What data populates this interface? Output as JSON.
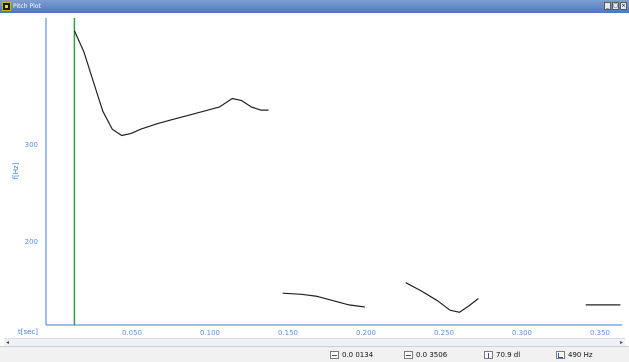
{
  "window": {
    "title": "Pitch Plot",
    "icon": "app-logo-icon",
    "controls": [
      "_",
      "□",
      "×"
    ]
  },
  "colors": {
    "titlebar": "#5b82c2",
    "axis": "#3a7fd6",
    "cursor": "#2fa14a",
    "curve": "#222222",
    "grid_text": "#5a8fe0"
  },
  "axes": {
    "y_label": "f[Hz]",
    "y_ticks": [
      "300",
      "200"
    ],
    "x_label": "t[sec]",
    "x_ticks": [
      "0.050",
      "0.100",
      "0.150",
      "0.200",
      "0.250",
      "0.300",
      "0.350"
    ]
  },
  "chart_data": {
    "type": "line",
    "xlabel": "t[sec]",
    "ylabel": "f[Hz]",
    "xlim": [
      0.0,
      0.365
    ],
    "ylim": [
      120,
      410
    ],
    "cursor_x": 0.018,
    "series": [
      {
        "x": [
          0.018,
          0.024,
          0.03,
          0.036,
          0.042,
          0.048,
          0.054,
          0.06,
          0.07,
          0.08,
          0.09,
          0.1,
          0.11,
          0.118,
          0.124,
          0.13,
          0.136,
          0.141
        ],
        "y": [
          398,
          378,
          350,
          322,
          305,
          299,
          301,
          305,
          310,
          314,
          318,
          322,
          326,
          334,
          332,
          326,
          323,
          323
        ]
      },
      {
        "x": [
          0.15,
          0.162,
          0.172,
          0.182,
          0.192,
          0.202
        ],
        "y": [
          150,
          149,
          147,
          143,
          139,
          137
        ]
      },
      {
        "x": [
          0.228,
          0.238,
          0.248,
          0.256,
          0.262,
          0.268,
          0.274
        ],
        "y": [
          160,
          152,
          143,
          134,
          132,
          138,
          145
        ]
      },
      {
        "x": [
          0.342,
          0.35,
          0.358,
          0.364
        ],
        "y": [
          139,
          139,
          139,
          139
        ]
      }
    ]
  },
  "status": {
    "range": "0.0 0134",
    "position": "0.0 3506",
    "level": "70.9 dl",
    "frequency": "490 Hz"
  }
}
